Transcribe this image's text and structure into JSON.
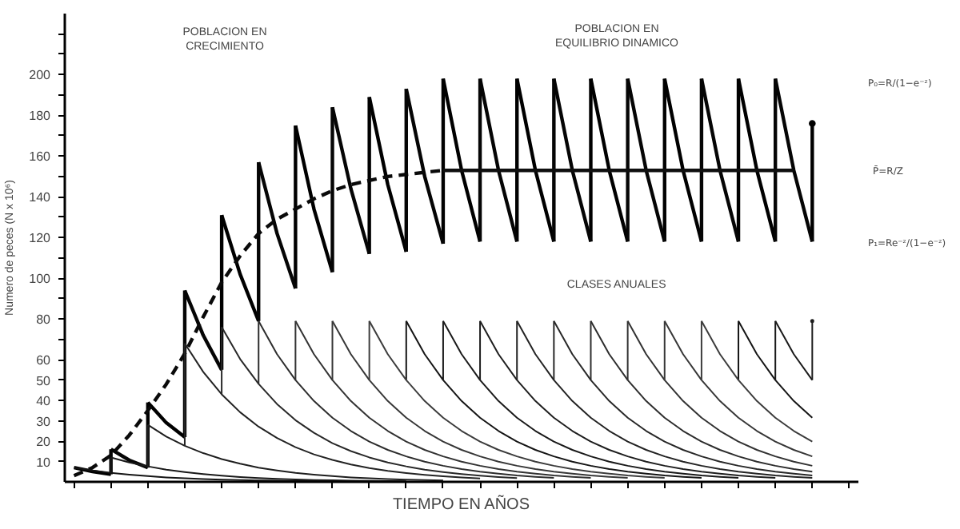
{
  "chart_data": {
    "type": "line",
    "xlabel": "TIEMPO EN AÑOS",
    "ylabel": "Numero de peces (N x 10⁶)",
    "categories": [
      null,
      null,
      null,
      null,
      null,
      null,
      null,
      null,
      null,
      null,
      null,
      null,
      null,
      null,
      null,
      null,
      null,
      null,
      null,
      null,
      null,
      null,
      null,
      null,
      null,
      null,
      null,
      null,
      null,
      null,
      null,
      null,
      null,
      null,
      null,
      null,
      null,
      null,
      null,
      null,
      null,
      null,
      null
    ],
    "ylim": [
      0,
      230
    ],
    "yticks": [
      10,
      20,
      30,
      40,
      50,
      60,
      {
        "value": 70,
        "label": null
      },
      80,
      {
        "value": 90,
        "label": null
      },
      100,
      {
        "value": 110,
        "label": null
      },
      120,
      {
        "value": 130,
        "label": null
      },
      140,
      {
        "value": 150,
        "label": null
      },
      160,
      {
        "value": 170,
        "label": null
      },
      180,
      {
        "value": 190,
        "label": null
      },
      200,
      {
        "value": 210,
        "label": null
      },
      {
        "value": 220,
        "label": null
      }
    ],
    "tick_labels": "y",
    "grid": false,
    "series": [
      {
        "color": "#000000",
        "line_style": "solid",
        "values": [
          7,
          5.1,
          3.7,
          null,
          39,
          29,
          22,
          null,
          131,
          102,
          79,
          null,
          175,
          134,
          103,
          null,
          189,
          146,
          113,
          null,
          198,
          153,
          118,
          null,
          198,
          153,
          118,
          null,
          198,
          153,
          118,
          null,
          198,
          153,
          118,
          null,
          198,
          153,
          118,
          null,
          176,
          null,
          null
        ],
        "errors": [
          null,
          null,
          null,
          null,
          [
            7,
            39
          ],
          null,
          null,
          null,
          [
            55,
            131
          ],
          null,
          null,
          null,
          [
            95,
            175
          ],
          null,
          null,
          null,
          [
            112,
            189
          ],
          null,
          null,
          null,
          [
            117,
            198
          ],
          null,
          null,
          null,
          [
            118,
            198
          ],
          null,
          null,
          null,
          [
            118,
            198
          ],
          null,
          null,
          null,
          [
            118,
            198
          ],
          null,
          null,
          null,
          [
            118,
            198
          ],
          null,
          null,
          null,
          [
            118,
            176
          ],
          null,
          null
        ]
      },
      {
        "color": "#050505",
        "line_style": "solid",
        "values": [
          null,
          null,
          16,
          10.6,
          7,
          null,
          94,
          72,
          55,
          null,
          157,
          122,
          95,
          null,
          184,
          144,
          112,
          null,
          193,
          150,
          117,
          null,
          198,
          153,
          118,
          null,
          198,
          153,
          118,
          null,
          198,
          153,
          118,
          null,
          198,
          153,
          118,
          null,
          198,
          153,
          118,
          null,
          null
        ],
        "errors": [
          null,
          null,
          [
            3.7,
            16
          ],
          null,
          null,
          null,
          [
            22,
            94
          ],
          null,
          null,
          null,
          [
            79,
            157
          ],
          null,
          null,
          null,
          [
            103,
            184
          ],
          null,
          null,
          null,
          [
            113,
            193
          ],
          null,
          null,
          null,
          [
            118,
            198
          ],
          null,
          null,
          null,
          [
            118,
            198
          ],
          null,
          null,
          null,
          [
            118,
            198
          ],
          null,
          null,
          null,
          [
            118,
            198
          ],
          null,
          null,
          null,
          [
            118,
            198
          ],
          null,
          null,
          null,
          null
        ]
      },
      {
        "color": "#0a0a0a",
        "line_style": "dashed",
        "values": [
          3,
          7,
          13,
          23,
          35,
          48,
          63,
          81,
          98,
          111,
          122,
          129,
          134,
          139,
          143,
          146,
          148,
          150,
          151,
          152,
          153,
          null,
          null,
          null,
          null,
          null,
          null,
          null,
          null,
          null,
          null,
          null,
          null,
          null,
          null,
          null,
          null,
          null,
          null,
          null,
          null,
          null,
          null
        ]
      },
      {
        "color": "#0f0f0f",
        "line_style": "solid",
        "values": [
          null,
          null,
          null,
          null,
          null,
          null,
          null,
          null,
          null,
          null,
          null,
          null,
          null,
          null,
          null,
          null,
          null,
          null,
          null,
          null,
          153,
          153,
          153,
          153,
          153,
          153,
          153,
          153,
          153,
          153,
          153,
          153,
          153,
          153,
          153,
          153,
          153,
          153,
          153,
          153,
          null,
          null,
          null
        ]
      },
      {
        "color": "#141414",
        "values": [
          7,
          5.6,
          4.4,
          3.5,
          2.8,
          2.2,
          1.8,
          1.4,
          1.1,
          0.9,
          0.7,
          0.6,
          0.4,
          0.4,
          0.3,
          0.2,
          0.2,
          null,
          79,
          62.7,
          50,
          39.7,
          31.5,
          25.0,
          19.8,
          15.7,
          12.5,
          9.9,
          7.9,
          6.3,
          5.0,
          4.0,
          3.1,
          2.5,
          2.0,
          null,
          79,
          62.7,
          50,
          39.7,
          31.5,
          null,
          null
        ],
        "errors": [
          null,
          null,
          null,
          null,
          null,
          null,
          null,
          null,
          null,
          null,
          null,
          null,
          null,
          null,
          null,
          null,
          null,
          null,
          [
            50,
            79
          ],
          null,
          null,
          null,
          null,
          null,
          null,
          null,
          null,
          null,
          null,
          null,
          null,
          null,
          null,
          null,
          null,
          null,
          [
            50,
            79
          ],
          null,
          null,
          null,
          null,
          null,
          null
        ]
      },
      {
        "color": "#191919",
        "values": [
          null,
          null,
          12,
          9.5,
          7.6,
          6.0,
          4.8,
          3.8,
          3.0,
          2.4,
          1.9,
          1.5,
          1.2,
          0.9,
          0.8,
          0.6,
          0.5,
          0.4,
          0.3,
          null,
          79,
          62.7,
          50,
          39.7,
          31.5,
          25.0,
          19.8,
          15.7,
          12.5,
          9.9,
          7.9,
          6.3,
          5.0,
          4.0,
          3.1,
          2.5,
          2.0,
          null,
          79,
          62.7,
          50,
          null,
          null
        ],
        "errors": [
          null,
          null,
          [
            4.4,
            12
          ],
          null,
          null,
          null,
          null,
          null,
          null,
          null,
          null,
          null,
          null,
          null,
          null,
          null,
          null,
          null,
          null,
          null,
          [
            50,
            79
          ],
          null,
          null,
          null,
          null,
          null,
          null,
          null,
          null,
          null,
          null,
          null,
          null,
          null,
          null,
          null,
          null,
          null,
          [
            50,
            79
          ],
          null,
          null,
          null,
          null
        ]
      },
      {
        "color": "#1e1e1e",
        "values": [
          null,
          null,
          null,
          null,
          28,
          22.2,
          17.7,
          14.1,
          11.2,
          8.9,
          7.0,
          5.6,
          4.4,
          3.5,
          2.8,
          2.2,
          1.8,
          1.4,
          1.1,
          0.9,
          0.7,
          null,
          79,
          62.7,
          50,
          39.7,
          31.5,
          25.0,
          19.8,
          15.7,
          12.5,
          9.9,
          7.9,
          6.3,
          5.0,
          4.0,
          3.1,
          2.5,
          2.0,
          null,
          79,
          null,
          null
        ],
        "errors": [
          null,
          null,
          null,
          null,
          [
            7.6,
            28
          ],
          null,
          null,
          null,
          null,
          null,
          null,
          null,
          null,
          null,
          null,
          null,
          null,
          null,
          null,
          null,
          null,
          null,
          [
            50,
            79
          ],
          null,
          null,
          null,
          null,
          null,
          null,
          null,
          null,
          null,
          null,
          null,
          null,
          null,
          null,
          null,
          null,
          null,
          [
            50,
            79
          ],
          null,
          null
        ]
      },
      {
        "color": "#232323",
        "values": [
          null,
          null,
          null,
          null,
          null,
          null,
          68,
          54,
          43.0,
          34.2,
          27.1,
          21.5,
          17.0,
          13.5,
          10.8,
          8.5,
          6.8,
          5.4,
          4.3,
          3.4,
          2.7,
          2.2,
          1.7,
          null,
          79,
          62.7,
          50,
          39.7,
          31.5,
          25.0,
          19.8,
          15.7,
          12.5,
          9.9,
          7.9,
          6.3,
          5.0,
          4.0,
          3.1,
          2.5,
          2.0,
          null,
          null
        ],
        "errors": [
          null,
          null,
          null,
          null,
          null,
          null,
          [
            17.7,
            68
          ],
          null,
          null,
          null,
          null,
          null,
          null,
          null,
          null,
          null,
          null,
          null,
          null,
          null,
          null,
          null,
          null,
          null,
          [
            50,
            79
          ],
          null,
          null,
          null,
          null,
          null,
          null,
          null,
          null,
          null,
          null,
          null,
          null,
          null,
          null,
          null,
          null,
          null,
          null
        ]
      },
      {
        "color": "#282828",
        "values": [
          null,
          null,
          null,
          null,
          null,
          null,
          null,
          null,
          76,
          60.3,
          48.1,
          38.2,
          30.3,
          24.1,
          19.0,
          15.1,
          12.0,
          9.5,
          7.6,
          6.0,
          4.8,
          3.8,
          3.0,
          2.4,
          1.9,
          null,
          79,
          62.7,
          50,
          39.7,
          31.5,
          25.0,
          19.8,
          15.7,
          12.5,
          9.9,
          7.9,
          6.3,
          5.0,
          4.0,
          3.1,
          null,
          null
        ],
        "errors": [
          null,
          null,
          null,
          null,
          null,
          null,
          null,
          null,
          [
            43.0,
            76
          ],
          null,
          null,
          null,
          null,
          null,
          null,
          null,
          null,
          null,
          null,
          null,
          null,
          null,
          null,
          null,
          null,
          null,
          [
            50,
            79
          ],
          null,
          null,
          null,
          null,
          null,
          null,
          null,
          null,
          null,
          null,
          null,
          null,
          null,
          null,
          null,
          null
        ]
      },
      {
        "color": "#2d2d2d",
        "values": [
          null,
          null,
          null,
          null,
          null,
          null,
          null,
          null,
          null,
          null,
          79,
          62.7,
          50,
          39.7,
          31.5,
          25.0,
          19.8,
          15.7,
          12.5,
          9.9,
          7.9,
          6.3,
          5.0,
          4.0,
          3.1,
          2.5,
          2.0,
          null,
          79,
          62.7,
          50,
          39.7,
          31.5,
          25.0,
          19.8,
          15.7,
          12.5,
          9.9,
          7.9,
          6.3,
          5.0,
          null,
          null
        ],
        "errors": [
          null,
          null,
          null,
          null,
          null,
          null,
          null,
          null,
          null,
          null,
          [
            48.1,
            79
          ],
          null,
          null,
          null,
          null,
          null,
          null,
          null,
          null,
          null,
          null,
          null,
          null,
          null,
          null,
          null,
          null,
          null,
          [
            50,
            79
          ],
          null,
          null,
          null,
          null,
          null,
          null,
          null,
          null,
          null,
          null,
          null,
          null,
          null,
          null
        ]
      },
      {
        "color": "#323232",
        "values": [
          null,
          null,
          null,
          null,
          null,
          null,
          null,
          null,
          null,
          null,
          null,
          null,
          79,
          62.7,
          50,
          39.7,
          31.5,
          25.0,
          19.8,
          15.7,
          12.5,
          9.9,
          7.9,
          6.3,
          5.0,
          4.0,
          3.1,
          2.5,
          2.0,
          null,
          79,
          62.7,
          50,
          39.7,
          31.5,
          25.0,
          19.8,
          15.7,
          12.5,
          9.9,
          7.9,
          null,
          null
        ],
        "errors": [
          null,
          null,
          null,
          null,
          null,
          null,
          null,
          null,
          null,
          null,
          null,
          null,
          [
            50,
            79
          ],
          null,
          null,
          null,
          null,
          null,
          null,
          null,
          null,
          null,
          null,
          null,
          null,
          null,
          null,
          null,
          null,
          null,
          [
            50,
            79
          ],
          null,
          null,
          null,
          null,
          null,
          null,
          null,
          null,
          null,
          null,
          null,
          null
        ]
      },
      {
        "color": "#373737",
        "values": [
          null,
          null,
          null,
          null,
          null,
          null,
          null,
          null,
          null,
          null,
          null,
          null,
          null,
          null,
          79,
          62.7,
          50,
          39.7,
          31.5,
          25.0,
          19.8,
          15.7,
          12.5,
          9.9,
          7.9,
          6.3,
          5.0,
          4.0,
          3.1,
          2.5,
          2.0,
          null,
          79,
          62.7,
          50,
          39.7,
          31.5,
          25.0,
          19.8,
          15.7,
          12.5,
          null,
          null
        ],
        "errors": [
          null,
          null,
          null,
          null,
          null,
          null,
          null,
          null,
          null,
          null,
          null,
          null,
          null,
          null,
          [
            50,
            79
          ],
          null,
          null,
          null,
          null,
          null,
          null,
          null,
          null,
          null,
          null,
          null,
          null,
          null,
          null,
          null,
          null,
          null,
          [
            50,
            79
          ],
          null,
          null,
          null,
          null,
          null,
          null,
          null,
          null,
          null,
          null
        ]
      },
      {
        "color": "#3c3c3c",
        "values": [
          null,
          null,
          null,
          null,
          null,
          null,
          null,
          null,
          null,
          null,
          null,
          null,
          null,
          null,
          null,
          null,
          79,
          62.7,
          50,
          39.7,
          31.5,
          25.0,
          19.8,
          15.7,
          12.5,
          9.9,
          7.9,
          6.3,
          5.0,
          4.0,
          3.1,
          2.5,
          2.0,
          null,
          79,
          62.7,
          50,
          39.7,
          31.5,
          25.0,
          19.8,
          null,
          null
        ],
        "errors": [
          null,
          null,
          null,
          null,
          null,
          null,
          null,
          null,
          null,
          null,
          null,
          null,
          null,
          null,
          null,
          null,
          [
            50,
            79
          ],
          null,
          null,
          null,
          null,
          null,
          null,
          null,
          null,
          null,
          null,
          null,
          null,
          null,
          null,
          null,
          null,
          null,
          [
            50,
            79
          ],
          null,
          null,
          null,
          null,
          null,
          null,
          null,
          null
        ]
      }
    ],
    "annotations": [
      "POBLACION EN\nCRECIMIENTO",
      "POBLACION EN\nEQUILIBRIO DINAMICO",
      "CLASES ANUALES",
      "P₀=R/(1−e⁻ᶻ)",
      "P̄=R/Z",
      "P₁=Re⁻ᶻ/(1−e⁻ᶻ)"
    ]
  }
}
